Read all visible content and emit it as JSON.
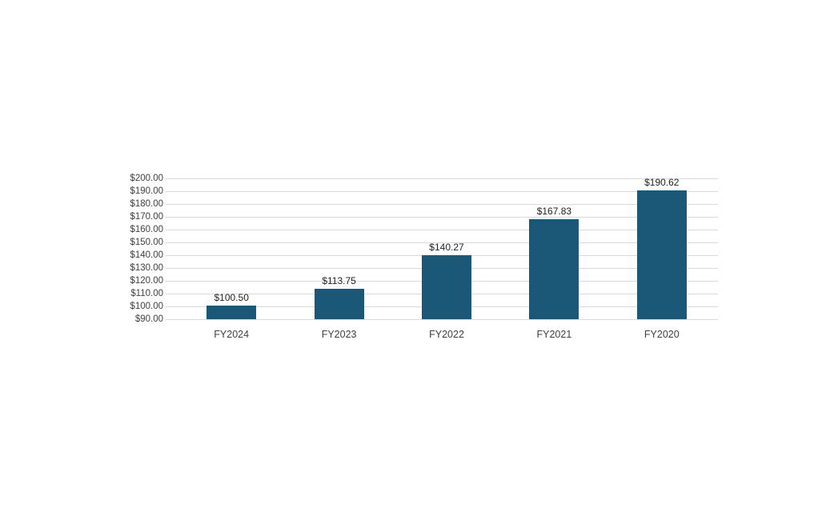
{
  "page": {
    "background": "#FFFFFF"
  },
  "chart_data": {
    "type": "bar",
    "title": "",
    "xlabel": "",
    "ylabel": "",
    "categories": [
      "FY2024",
      "FY2023",
      "FY2022",
      "FY2021",
      "FY2020"
    ],
    "values": [
      100.5,
      113.75,
      140.27,
      167.83,
      190.62
    ],
    "data_labels": [
      "$100.50",
      "$113.75",
      "$140.27",
      "$167.83",
      "$190.62"
    ],
    "ylim": [
      90,
      200
    ],
    "ytick_step": 10,
    "ytick_labels_top_to_bottom": [
      "$200.00",
      "$190.00",
      "$180.00",
      "$170.00",
      "$160.00",
      "$150.00",
      "$140.00",
      "$130.00",
      "$120.00",
      "$110.00",
      "$100.00",
      "$90.00"
    ],
    "grid": true,
    "legend": false,
    "colors": {
      "bar": "#1B5776",
      "gridline": "#D9D9D9",
      "tick_label": "#404040",
      "category_label": "#404040",
      "value_label": "#1F1F1F",
      "background": "#FFFFFF"
    }
  }
}
